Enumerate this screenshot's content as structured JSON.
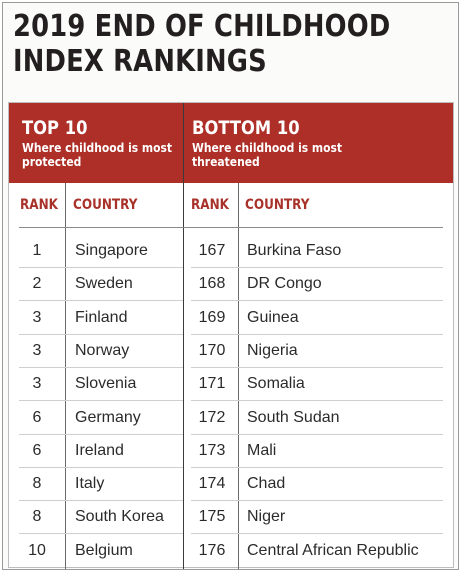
{
  "title": {
    "line1": "2019 END OF CHILDHOOD",
    "line2": "INDEX RANKINGS"
  },
  "top": {
    "heading": "TOP 10",
    "subheading": "Where childhood is most protected"
  },
  "bottom": {
    "heading": "BOTTOM 10",
    "subheading": "Where childhood is most threatened"
  },
  "columns": {
    "rank": "RANK",
    "country": "COUNTRY"
  },
  "rows": [
    {
      "top_rank": "1",
      "top_country": "Singapore",
      "bottom_rank": "167",
      "bottom_country": "Burkina Faso"
    },
    {
      "top_rank": "2",
      "top_country": "Sweden",
      "bottom_rank": "168",
      "bottom_country": "DR Congo"
    },
    {
      "top_rank": "3",
      "top_country": "Finland",
      "bottom_rank": "169",
      "bottom_country": "Guinea"
    },
    {
      "top_rank": "3",
      "top_country": "Norway",
      "bottom_rank": "170",
      "bottom_country": "Nigeria"
    },
    {
      "top_rank": "3",
      "top_country": "Slovenia",
      "bottom_rank": "171",
      "bottom_country": "Somalia"
    },
    {
      "top_rank": "6",
      "top_country": "Germany",
      "bottom_rank": "172",
      "bottom_country": "South Sudan"
    },
    {
      "top_rank": "6",
      "top_country": "Ireland",
      "bottom_rank": "173",
      "bottom_country": "Mali"
    },
    {
      "top_rank": "8",
      "top_country": "Italy",
      "bottom_rank": "174",
      "bottom_country": "Chad"
    },
    {
      "top_rank": "8",
      "top_country": "South Korea",
      "bottom_rank": "175",
      "bottom_country": "Niger"
    },
    {
      "top_rank": "10",
      "top_country": "Belgium",
      "bottom_rank": "176",
      "bottom_country": "Central African Republic"
    }
  ]
}
